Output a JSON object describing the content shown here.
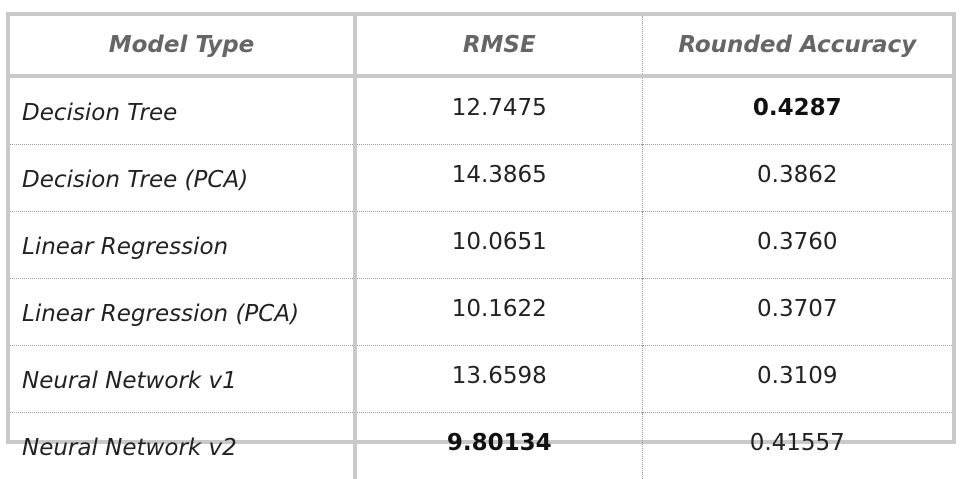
{
  "table": {
    "headers": [
      "Model Type",
      "RMSE",
      "Rounded Accuracy"
    ],
    "rows": [
      {
        "model": "Decision Tree",
        "rmse": "12.7475",
        "accuracy": "0.4287",
        "bold_rmse": false,
        "bold_accuracy": true
      },
      {
        "model": "Decision Tree (PCA)",
        "rmse": "14.3865",
        "accuracy": "0.3862",
        "bold_rmse": false,
        "bold_accuracy": false
      },
      {
        "model": "Linear Regression",
        "rmse": "10.0651",
        "accuracy": "0.3760",
        "bold_rmse": false,
        "bold_accuracy": false
      },
      {
        "model": "Linear Regression (PCA)",
        "rmse": "10.1622",
        "accuracy": "0.3707",
        "bold_rmse": false,
        "bold_accuracy": false
      },
      {
        "model": "Neural Network v1",
        "rmse": "13.6598",
        "accuracy": "0.3109",
        "bold_rmse": false,
        "bold_accuracy": false
      },
      {
        "model": "Neural Network v2",
        "rmse": "9.80134",
        "accuracy": "0.41557",
        "bold_rmse": true,
        "bold_accuracy": false
      }
    ]
  },
  "colors": {
    "border": "#c9c9c9",
    "header_text": "#666666",
    "body_text": "#222222"
  }
}
